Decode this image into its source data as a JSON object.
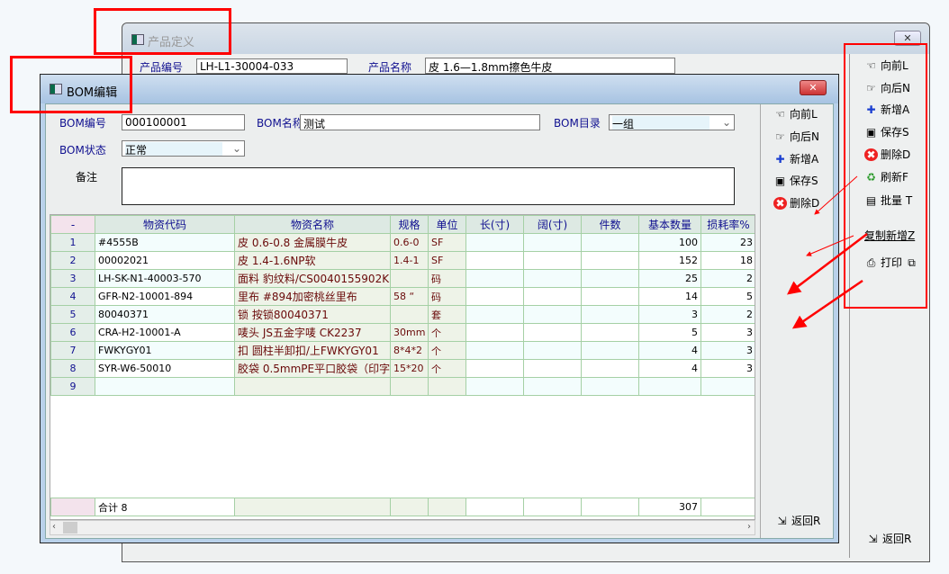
{
  "outer_window": {
    "title": "产品定义",
    "close": "✕",
    "product_code_label": "产品编号",
    "product_code": "LH-L1-30004-033",
    "product_name_label": "产品名称",
    "product_name": "皮  1.6—1.8mm擦色牛皮",
    "buttons": [
      {
        "icon": "hand-left-icon",
        "glyph": "☜",
        "label": "向前L"
      },
      {
        "icon": "hand-right-icon",
        "glyph": "☞",
        "label": "向后N"
      },
      {
        "icon": "new-doc-icon",
        "glyph": "✚",
        "label": "新增A"
      },
      {
        "icon": "floppy-icon",
        "glyph": "▣",
        "label": "保存S"
      },
      {
        "icon": "delete-icon",
        "glyph": "✖",
        "label": "删除D"
      },
      {
        "icon": "refresh-icon",
        "glyph": "♻",
        "label": "刷新F"
      },
      {
        "icon": "batch-icon",
        "glyph": "▤",
        "label": "批量 T"
      },
      {
        "icon": "",
        "glyph": "",
        "label": "复制新增Z"
      },
      {
        "icon": "printer-icon",
        "glyph": "⎙",
        "label": "打印"
      }
    ],
    "return_label": "返回R"
  },
  "bom_window": {
    "title": "BOM编辑",
    "close": "✕",
    "form": {
      "bom_code_label": "BOM编号",
      "bom_code": "000100001",
      "bom_name_label": "BOM名称",
      "bom_name": "测试",
      "bom_dir_label": "BOM目录",
      "bom_dir": "一组",
      "bom_status_label": "BOM状态",
      "bom_status": "正常",
      "remark_label": "备注",
      "remark": ""
    },
    "buttons": [
      {
        "icon": "hand-left-icon",
        "glyph": "☜",
        "label": "向前L"
      },
      {
        "icon": "hand-right-icon",
        "glyph": "☞",
        "label": "向后N"
      },
      {
        "icon": "new-doc-icon",
        "glyph": "✚",
        "label": "新增A"
      },
      {
        "icon": "floppy-icon",
        "glyph": "▣",
        "label": "保存S"
      },
      {
        "icon": "delete-icon",
        "glyph": "✖",
        "label": "删除D"
      }
    ],
    "return_label": "返回R",
    "grid": {
      "columns": [
        "-",
        "物资代码",
        "物资名称",
        "规格",
        "单位",
        "长(寸)",
        "阔(寸)",
        "件数",
        "基本数量",
        "损耗率%"
      ],
      "rows": [
        [
          "1",
          "#4555B",
          "皮  0.6-0.8  金属膜牛皮",
          "0.6-0",
          "SF",
          "",
          "",
          "",
          "100",
          "23"
        ],
        [
          "2",
          "00002021",
          "皮 1.4-1.6NP软",
          "1.4-1",
          "SF",
          "",
          "",
          "",
          "152",
          "18"
        ],
        [
          "3",
          "LH-SK-N1-40003-570",
          "面料 豹纹料/CS0040155902K",
          "",
          "码",
          "",
          "",
          "",
          "25",
          "2"
        ],
        [
          "4",
          "GFR-N2-10001-894",
          "里布  #894加密桃丝里布",
          "58 “",
          "码",
          "",
          "",
          "",
          "14",
          "5"
        ],
        [
          "5",
          "80040371",
          "锁 按锁80040371",
          "",
          "套",
          "",
          "",
          "",
          "3",
          "2"
        ],
        [
          "6",
          "CRA-H2-10001-A",
          "唛头  JS五金字唛 CK2237",
          "30mm",
          "个",
          "",
          "",
          "",
          "5",
          "3"
        ],
        [
          "7",
          "FWKYGY01",
          "扣 圆柱半卸扣/上FWKYGY01",
          "8*4*2",
          "个",
          "",
          "",
          "",
          "4",
          "3"
        ],
        [
          "8",
          "SYR-W6-50010",
          "胶袋  0.5mmPE平口胶袋（印字",
          "15*20",
          "个",
          "",
          "",
          "",
          "4",
          "3"
        ],
        [
          "9",
          "",
          "",
          "",
          "",
          "",
          "",
          "",
          "",
          ""
        ]
      ],
      "total": [
        "",
        "合计 8",
        "",
        "",
        "",
        "",
        "",
        "",
        "307",
        ""
      ]
    }
  },
  "colors": {
    "annotation": "#ff0000",
    "title_bar": "#b9d1ea",
    "grid_line": "#a5d0a5",
    "label": "#101090"
  }
}
